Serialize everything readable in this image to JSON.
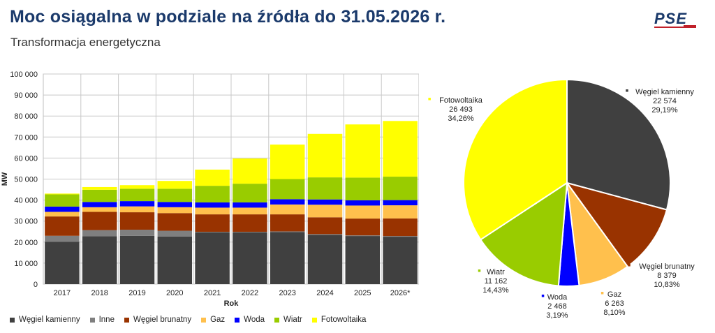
{
  "header": {
    "title": "Moc osiągalna w podziale na źródła do 31.05.2026 r.",
    "subtitle": "Transformacja energetyczna",
    "logo_text": "PSE"
  },
  "chart_data": [
    {
      "type": "bar",
      "stacked": true,
      "categories": [
        "2017",
        "2018",
        "2019",
        "2020",
        "2021",
        "2022",
        "2023",
        "2024",
        "2025",
        "2026*"
      ],
      "xlabel": "Rok",
      "ylabel": "MW",
      "ylim": [
        0,
        100000
      ],
      "yticks": [
        0,
        10000,
        20000,
        30000,
        40000,
        50000,
        60000,
        70000,
        80000,
        90000,
        100000
      ],
      "ytick_labels": [
        "0",
        "10 000",
        "20 000",
        "30 000",
        "40 000",
        "50 000",
        "60 000",
        "70 000",
        "80 000",
        "90 000",
        "100 000"
      ],
      "grid": true,
      "legend_position": "bottom",
      "series": [
        {
          "name": "Węgiel kamienny",
          "color": "#404040",
          "values": [
            20200,
            22800,
            23000,
            22600,
            24600,
            24600,
            24800,
            23500,
            22900,
            22574
          ]
        },
        {
          "name": "Inne",
          "color": "#7f7f7f",
          "values": [
            2800,
            2900,
            2900,
            2800,
            300,
            300,
            300,
            300,
            300,
            300
          ]
        },
        {
          "name": "Węgiel brunatny",
          "color": "#993300",
          "values": [
            9200,
            8700,
            8300,
            8400,
            8300,
            8300,
            8100,
            8000,
            8000,
            8379
          ]
        },
        {
          "name": "Gaz",
          "color": "#ffc04d",
          "values": [
            2200,
            2200,
            2800,
            2800,
            3200,
            3200,
            4700,
            6000,
            6200,
            6263
          ]
        },
        {
          "name": "Woda",
          "color": "#0000ff",
          "values": [
            2500,
            2500,
            2500,
            2500,
            2500,
            2500,
            2500,
            2500,
            2500,
            2468
          ]
        },
        {
          "name": "Wiatr",
          "color": "#99cc00",
          "values": [
            5800,
            5800,
            5900,
            6300,
            7900,
            8900,
            9600,
            10500,
            10800,
            11162
          ]
        },
        {
          "name": "Fotowoltaika",
          "color": "#ffff00",
          "values": [
            400,
            1300,
            1700,
            3700,
            7700,
            12000,
            16400,
            20700,
            25300,
            26493
          ]
        }
      ]
    },
    {
      "type": "pie",
      "start_angle_deg": 0,
      "slices": [
        {
          "name": "Węgiel kamienny",
          "value_label": "22 574",
          "pct_label": "29,19%",
          "value": 22574,
          "pct": 29.19,
          "color": "#404040"
        },
        {
          "name": "Węgiel brunatny",
          "value_label": "8 379",
          "pct_label": "10,83%",
          "value": 8379,
          "pct": 10.83,
          "color": "#993300"
        },
        {
          "name": "Gaz",
          "value_label": "6 263",
          "pct_label": "8,10%",
          "value": 6263,
          "pct": 8.1,
          "color": "#ffc04d"
        },
        {
          "name": "Woda",
          "value_label": "2 468",
          "pct_label": "3,19%",
          "value": 2468,
          "pct": 3.19,
          "color": "#0000ff"
        },
        {
          "name": "Wiatr",
          "value_label": "11 162",
          "pct_label": "14,43%",
          "value": 11162,
          "pct": 14.43,
          "color": "#99cc00"
        },
        {
          "name": "Fotowoltaika",
          "value_label": "26 493",
          "pct_label": "34,26%",
          "value": 26493,
          "pct": 34.26,
          "color": "#ffff00"
        }
      ]
    }
  ],
  "legend": [
    {
      "label": "Węgiel kamienny",
      "color": "#404040"
    },
    {
      "label": "Inne",
      "color": "#7f7f7f"
    },
    {
      "label": "Węgiel brunatny",
      "color": "#993300"
    },
    {
      "label": "Gaz",
      "color": "#ffc04d"
    },
    {
      "label": "Woda",
      "color": "#0000ff"
    },
    {
      "label": "Wiatr",
      "color": "#99cc00"
    },
    {
      "label": "Fotowoltaika",
      "color": "#ffff00"
    }
  ]
}
